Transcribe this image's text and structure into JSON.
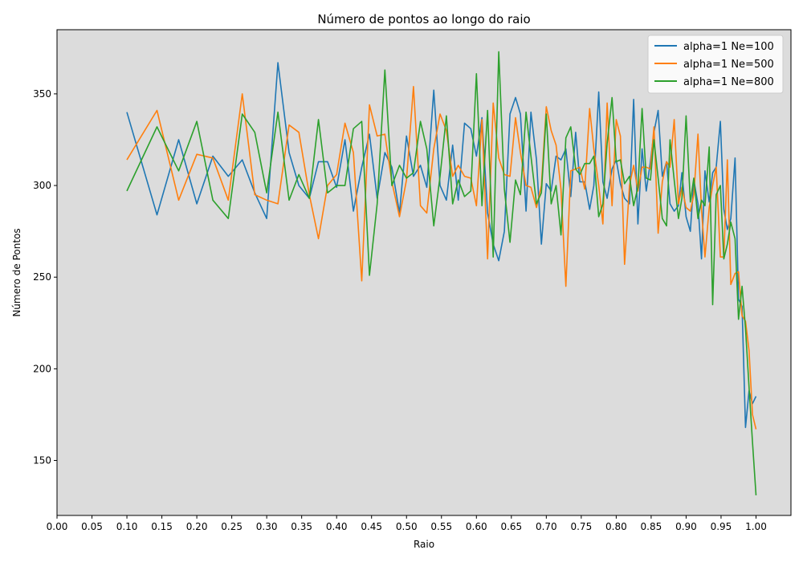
{
  "chart_data": {
    "type": "line",
    "title": "Número de pontos ao longo do raio",
    "xlabel": "Raio",
    "ylabel": "Número de Pontos",
    "xlim": [
      0.0,
      1.05
    ],
    "ylim": [
      120,
      385
    ],
    "xticks": [
      "0.00",
      "0.05",
      "0.10",
      "0.15",
      "0.20",
      "0.25",
      "0.30",
      "0.35",
      "0.40",
      "0.45",
      "0.50",
      "0.55",
      "0.60",
      "0.65",
      "0.70",
      "0.75",
      "0.80",
      "0.85",
      "0.90",
      "0.95",
      "1.00"
    ],
    "yticks": [
      "150",
      "200",
      "250",
      "300",
      "350"
    ],
    "background": "#dcdcdc",
    "grid": false,
    "legend_position": "top-right",
    "series": [
      {
        "name": "alpha=1 Ne=100",
        "color": "#1f77b4",
        "x": [
          0.1,
          0.143,
          0.174,
          0.2,
          0.223,
          0.245,
          0.265,
          0.283,
          0.3,
          0.316,
          0.332,
          0.346,
          0.361,
          0.374,
          0.387,
          0.4,
          0.412,
          0.424,
          0.436,
          0.447,
          0.458,
          0.469,
          0.479,
          0.49,
          0.5,
          0.51,
          0.52,
          0.529,
          0.539,
          0.548,
          0.557,
          0.566,
          0.574,
          0.583,
          0.592,
          0.6,
          0.608,
          0.616,
          0.624,
          0.632,
          0.64,
          0.648,
          0.656,
          0.663,
          0.671,
          0.678,
          0.686,
          0.693,
          0.7,
          0.707,
          0.714,
          0.721,
          0.728,
          0.735,
          0.742,
          0.748,
          0.755,
          0.762,
          0.768,
          0.775,
          0.781,
          0.787,
          0.794,
          0.8,
          0.806,
          0.812,
          0.819,
          0.825,
          0.831,
          0.837,
          0.843,
          0.849,
          0.854,
          0.86,
          0.866,
          0.872,
          0.877,
          0.883,
          0.889,
          0.894,
          0.9,
          0.906,
          0.911,
          0.917,
          0.922,
          0.927,
          0.933,
          0.938,
          0.943,
          0.949,
          0.954,
          0.959,
          0.964,
          0.97,
          0.975,
          0.98,
          0.985,
          0.99,
          0.995,
          1.0
        ],
        "values": [
          340,
          284,
          325,
          290,
          316,
          305,
          314,
          296,
          282,
          367,
          318,
          300,
          293,
          313,
          313,
          299,
          325,
          286,
          310,
          328,
          293,
          318,
          310,
          285,
          327,
          305,
          311,
          299,
          352,
          300,
          292,
          322,
          292,
          334,
          331,
          316,
          337,
          285,
          268,
          259,
          275,
          339,
          348,
          339,
          286,
          340,
          314,
          268,
          301,
          297,
          316,
          314,
          320,
          294,
          329,
          302,
          302,
          287,
          300,
          351,
          302,
          293,
          309,
          314,
          301,
          293,
          290,
          347,
          279,
          320,
          297,
          313,
          329,
          341,
          305,
          313,
          290,
          286,
          289,
          307,
          283,
          275,
          303,
          290,
          260,
          308,
          291,
          307,
          310,
          335,
          287,
          276,
          282,
          315,
          238,
          234,
          168,
          188,
          181,
          185
        ]
      },
      {
        "name": "alpha=1 Ne=500",
        "color": "#ff7f0e",
        "x": [
          0.1,
          0.143,
          0.174,
          0.2,
          0.223,
          0.245,
          0.265,
          0.283,
          0.3,
          0.316,
          0.332,
          0.346,
          0.361,
          0.374,
          0.387,
          0.4,
          0.412,
          0.424,
          0.436,
          0.447,
          0.458,
          0.469,
          0.479,
          0.49,
          0.5,
          0.51,
          0.52,
          0.529,
          0.539,
          0.548,
          0.557,
          0.566,
          0.574,
          0.583,
          0.592,
          0.6,
          0.608,
          0.616,
          0.624,
          0.632,
          0.64,
          0.648,
          0.656,
          0.663,
          0.671,
          0.678,
          0.686,
          0.693,
          0.7,
          0.707,
          0.714,
          0.721,
          0.728,
          0.735,
          0.742,
          0.748,
          0.755,
          0.762,
          0.768,
          0.775,
          0.781,
          0.787,
          0.794,
          0.8,
          0.806,
          0.812,
          0.819,
          0.825,
          0.831,
          0.837,
          0.843,
          0.849,
          0.854,
          0.86,
          0.866,
          0.872,
          0.877,
          0.883,
          0.889,
          0.894,
          0.9,
          0.906,
          0.911,
          0.917,
          0.922,
          0.927,
          0.933,
          0.938,
          0.943,
          0.949,
          0.954,
          0.959,
          0.964,
          0.97,
          0.975,
          0.98,
          0.985,
          0.99,
          0.995,
          1.0
        ],
        "values": [
          314,
          341,
          292,
          317,
          315,
          292,
          350,
          295,
          292,
          290,
          333,
          329,
          295,
          271,
          300,
          306,
          334,
          318,
          248,
          344,
          327,
          328,
          302,
          283,
          303,
          354,
          289,
          285,
          320,
          339,
          330,
          305,
          311,
          305,
          304,
          289,
          336,
          260,
          345,
          315,
          306,
          305,
          337,
          318,
          300,
          299,
          288,
          300,
          343,
          330,
          322,
          298,
          245,
          308,
          309,
          310,
          298,
          342,
          320,
          300,
          279,
          345,
          289,
          336,
          327,
          257,
          300,
          311,
          297,
          310,
          310,
          309,
          332,
          274,
          302,
          313,
          310,
          336,
          290,
          299,
          288,
          286,
          295,
          328,
          287,
          261,
          288,
          300,
          310,
          261,
          261,
          314,
          246,
          252,
          253,
          229,
          226,
          210,
          175,
          167
        ]
      },
      {
        "name": "alpha=1 Ne=800",
        "color": "#2ca02c",
        "x": [
          0.1,
          0.143,
          0.174,
          0.2,
          0.223,
          0.245,
          0.265,
          0.283,
          0.3,
          0.316,
          0.332,
          0.346,
          0.361,
          0.374,
          0.387,
          0.4,
          0.412,
          0.424,
          0.436,
          0.447,
          0.458,
          0.469,
          0.479,
          0.49,
          0.5,
          0.51,
          0.52,
          0.529,
          0.539,
          0.548,
          0.557,
          0.566,
          0.574,
          0.583,
          0.592,
          0.6,
          0.608,
          0.616,
          0.624,
          0.632,
          0.64,
          0.648,
          0.656,
          0.663,
          0.671,
          0.678,
          0.686,
          0.693,
          0.7,
          0.707,
          0.714,
          0.721,
          0.728,
          0.735,
          0.742,
          0.748,
          0.755,
          0.762,
          0.768,
          0.775,
          0.781,
          0.787,
          0.794,
          0.8,
          0.806,
          0.812,
          0.819,
          0.825,
          0.831,
          0.837,
          0.843,
          0.849,
          0.854,
          0.86,
          0.866,
          0.872,
          0.877,
          0.883,
          0.889,
          0.894,
          0.9,
          0.906,
          0.911,
          0.917,
          0.922,
          0.927,
          0.933,
          0.938,
          0.943,
          0.949,
          0.954,
          0.959,
          0.964,
          0.97,
          0.975,
          0.98,
          0.985,
          0.99,
          0.995,
          1.0
        ],
        "values": [
          297,
          332,
          308,
          335,
          292,
          282,
          339,
          329,
          296,
          340,
          292,
          306,
          293,
          336,
          296,
          300,
          300,
          331,
          335,
          251,
          290,
          363,
          300,
          311,
          304,
          307,
          335,
          320,
          278,
          305,
          338,
          290,
          303,
          294,
          297,
          361,
          289,
          341,
          261,
          373,
          298,
          269,
          303,
          295,
          340,
          316,
          290,
          296,
          339,
          290,
          300,
          273,
          326,
          332,
          309,
          306,
          312,
          312,
          316,
          283,
          290,
          323,
          348,
          313,
          314,
          301,
          305,
          289,
          299,
          342,
          304,
          303,
          325,
          304,
          282,
          278,
          325,
          303,
          282,
          293,
          338,
          291,
          304,
          282,
          292,
          289,
          321,
          235,
          295,
          300,
          260,
          268,
          280,
          271,
          227,
          245,
          222,
          190,
          160,
          131
        ]
      }
    ]
  }
}
